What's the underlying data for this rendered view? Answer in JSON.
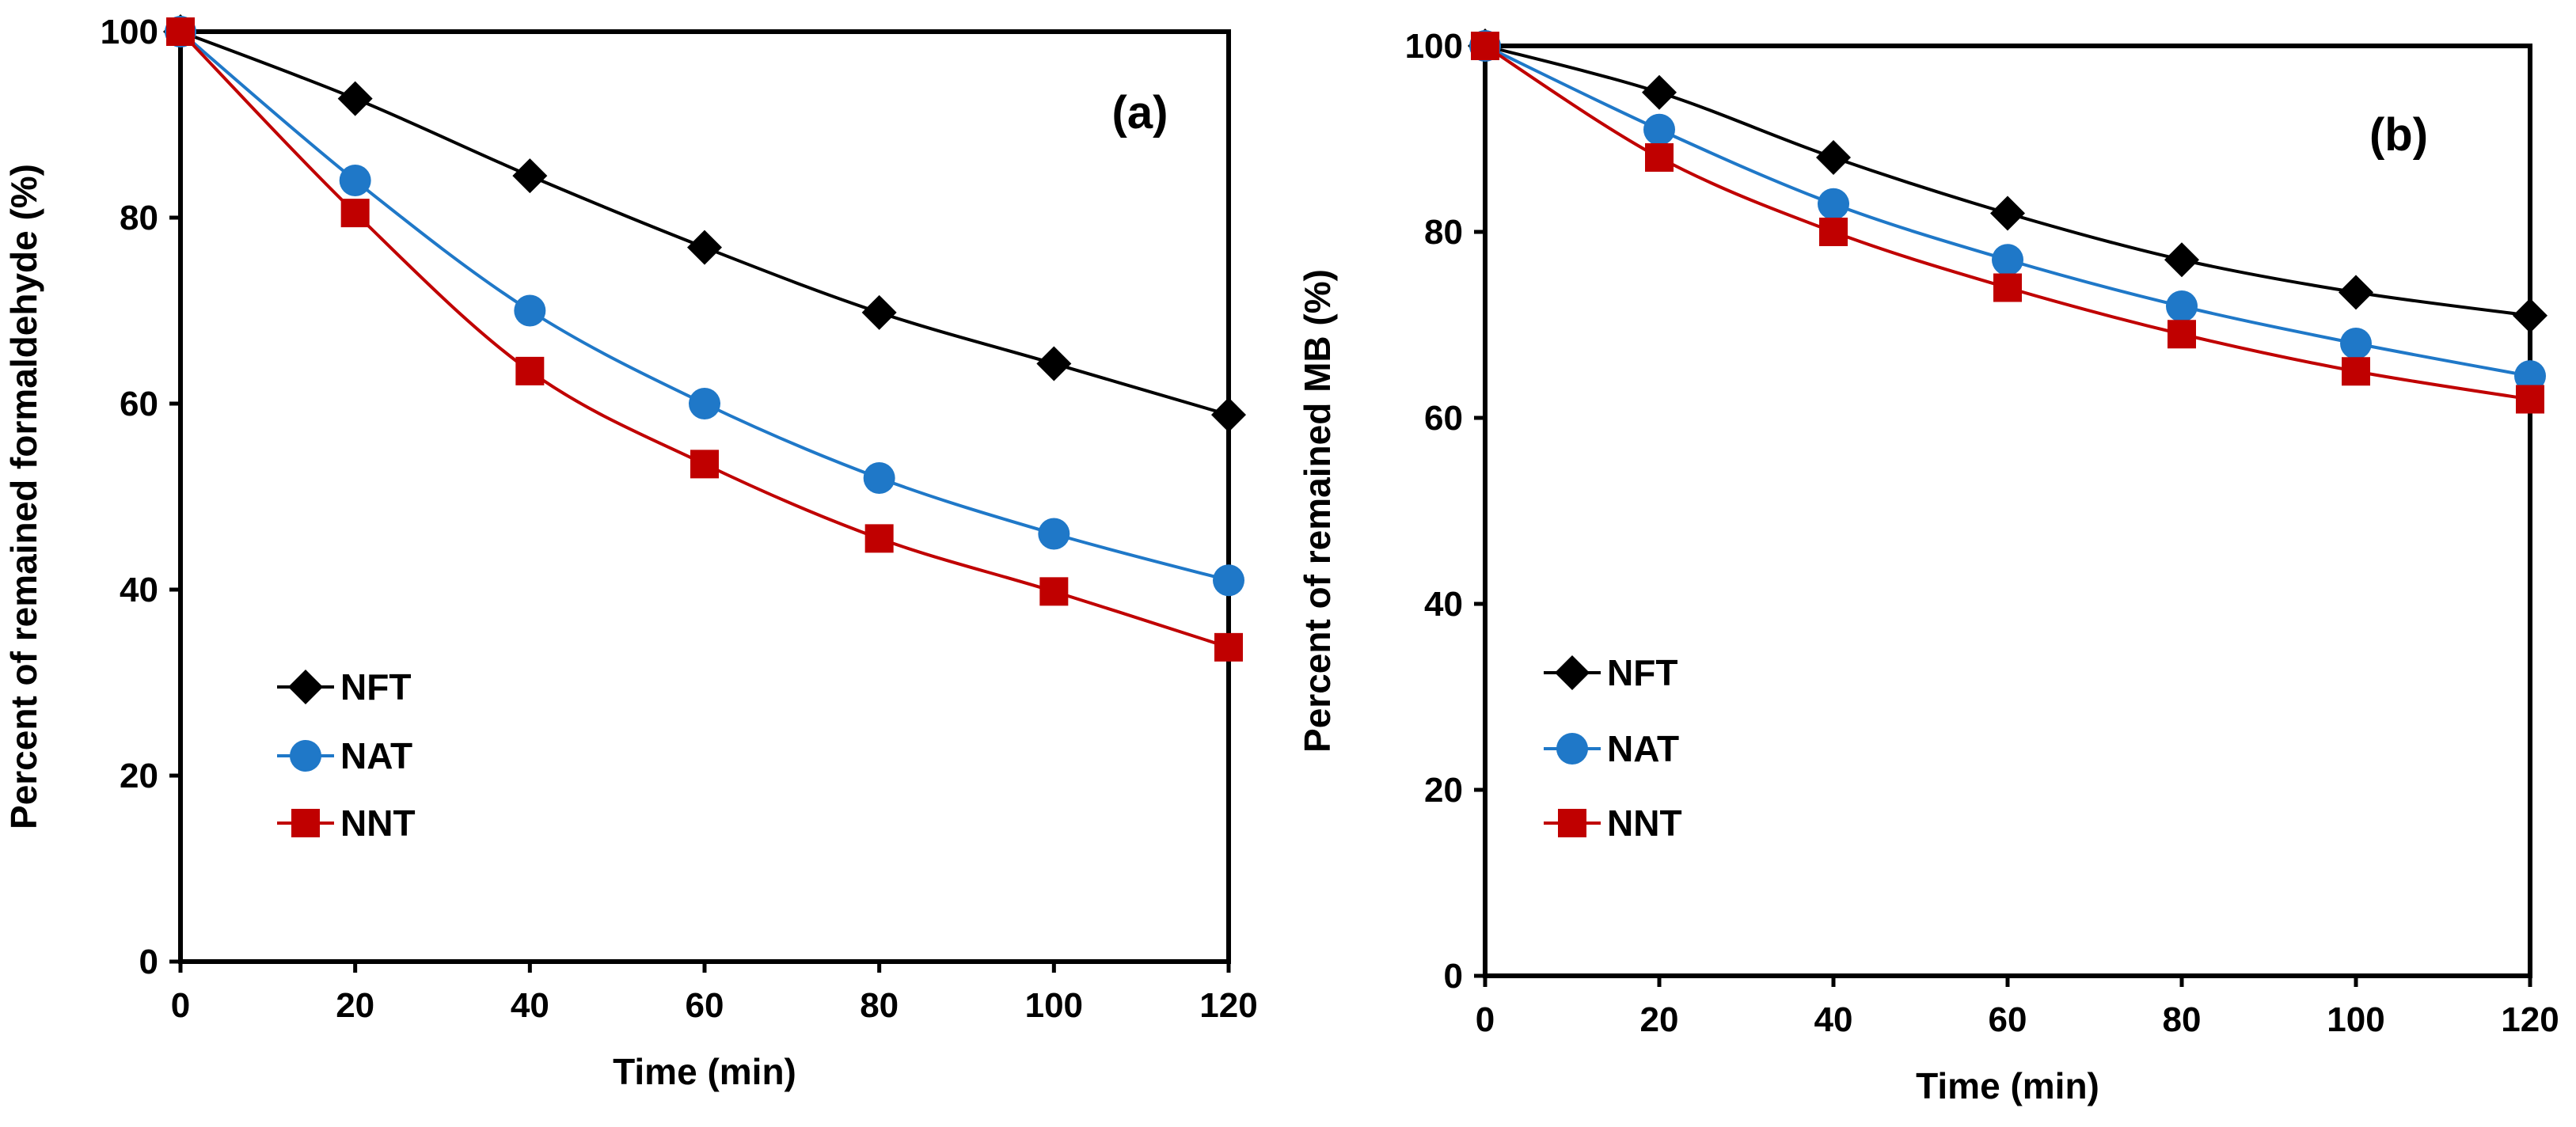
{
  "chart_data": [
    {
      "type": "line",
      "panel_label": "(a)",
      "xlabel": "Time (min)",
      "ylabel": "Percent of remained formaldehyde  (%)",
      "xlim": [
        0,
        120
      ],
      "ylim": [
        0,
        100
      ],
      "x_ticks": [
        0,
        20,
        40,
        60,
        80,
        100,
        120
      ],
      "y_ticks": [
        0,
        20,
        40,
        60,
        80,
        100
      ],
      "grid": false,
      "legend_position": "lower-left",
      "x": [
        0,
        20,
        40,
        60,
        80,
        100,
        120
      ],
      "series": [
        {
          "name": "NFT",
          "marker": "diamond",
          "color": "#000000",
          "values": [
            100,
            92.8,
            84.5,
            76.8,
            69.8,
            64.3,
            58.8
          ]
        },
        {
          "name": "NAT",
          "marker": "circle",
          "color": "#1f78c8",
          "values": [
            100,
            84,
            70,
            60,
            52,
            46,
            41
          ]
        },
        {
          "name": "NNT",
          "marker": "square",
          "color": "#c00000",
          "values": [
            100,
            80.5,
            63.5,
            53.5,
            45.5,
            39.8,
            33.8
          ]
        }
      ]
    },
    {
      "type": "line",
      "panel_label": "(b)",
      "xlabel": "Time (min)",
      "ylabel": "Percent of remained MB  (%)",
      "xlim": [
        0,
        120
      ],
      "ylim": [
        0,
        100
      ],
      "x_ticks": [
        0,
        20,
        40,
        60,
        80,
        100,
        120
      ],
      "y_ticks": [
        0,
        20,
        40,
        60,
        80,
        100
      ],
      "grid": false,
      "legend_position": "lower-left",
      "x": [
        0,
        20,
        40,
        60,
        80,
        100,
        120
      ],
      "series": [
        {
          "name": "NFT",
          "marker": "diamond",
          "color": "#000000",
          "values": [
            100,
            95,
            88,
            82,
            77,
            73.5,
            71
          ]
        },
        {
          "name": "NAT",
          "marker": "circle",
          "color": "#1f78c8",
          "values": [
            100,
            91,
            83,
            77,
            72,
            68,
            64.5
          ]
        },
        {
          "name": "NNT",
          "marker": "square",
          "color": "#c00000",
          "values": [
            100,
            88,
            80,
            74,
            69,
            65,
            62
          ]
        }
      ]
    }
  ]
}
